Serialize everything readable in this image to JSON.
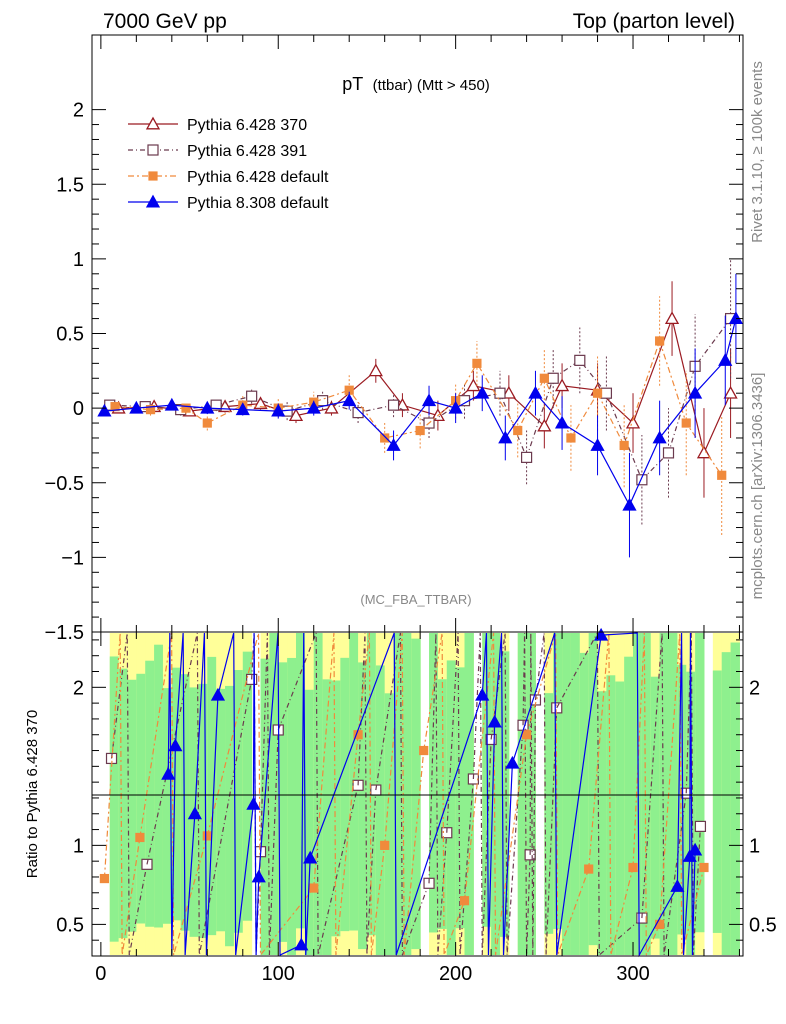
{
  "header": {
    "left": "7000 GeV pp",
    "right": "Top (parton level)"
  },
  "side_labels": {
    "rivet": "Rivet 3.1.10, ≥ 100k events",
    "mcplots": "mcplots.cern.ch [arXiv:1306.3436]"
  },
  "chart_data": [
    {
      "type": "line",
      "title_main": "pT",
      "title_sub": "(ttbar) (Mtt > 450)",
      "watermark": "(MC_FBA_TTBAR)",
      "xlim": [
        -5,
        362
      ],
      "ylim": [
        -1.5,
        2.5
      ],
      "y_ticks": [
        -1.5,
        -1,
        -0.5,
        0,
        0.5,
        1,
        1.5,
        2
      ],
      "y_tick_labels": [
        "−1.5",
        "−1",
        "−0.5",
        "0",
        "0.5",
        "1",
        "1.5",
        "2"
      ],
      "x_ticks": [
        0,
        100,
        200,
        300
      ],
      "x_tick_labels": [
        "0",
        "100",
        "200",
        "300"
      ],
      "legend_position": "top-left",
      "series": [
        {
          "name": "Pythia 6.428 370",
          "color": "#9b1b22",
          "marker": "open-triangle",
          "x": [
            10,
            30,
            50,
            70,
            90,
            110,
            130,
            155,
            170,
            190,
            210,
            230,
            250,
            260,
            280,
            300,
            322,
            340,
            355
          ],
          "y": [
            0.0,
            0.01,
            -0.02,
            0.01,
            0.03,
            -0.05,
            0.0,
            0.25,
            0.02,
            -0.05,
            0.15,
            0.1,
            -0.12,
            0.15,
            0.12,
            -0.1,
            0.6,
            -0.3,
            0.1
          ],
          "err": [
            0.02,
            0.03,
            0.03,
            0.04,
            0.04,
            0.05,
            0.05,
            0.08,
            0.08,
            0.1,
            0.1,
            0.12,
            0.15,
            0.15,
            0.18,
            0.2,
            0.25,
            0.3,
            0.3
          ]
        },
        {
          "name": "Pythia 6.428 391",
          "color": "#6b3a4e",
          "marker": "open-square",
          "x": [
            5,
            25,
            45,
            65,
            85,
            105,
            125,
            145,
            165,
            185,
            205,
            225,
            240,
            255,
            270,
            285,
            305,
            320,
            335,
            355
          ],
          "y": [
            0.02,
            0.01,
            -0.01,
            0.02,
            0.08,
            -0.02,
            0.05,
            -0.03,
            0.02,
            -0.1,
            0.05,
            0.1,
            -0.33,
            0.2,
            0.32,
            0.1,
            -0.48,
            -0.3,
            0.28,
            0.6
          ],
          "err": [
            0.03,
            0.03,
            0.04,
            0.04,
            0.05,
            0.06,
            0.06,
            0.07,
            0.08,
            0.1,
            0.12,
            0.15,
            0.18,
            0.2,
            0.22,
            0.25,
            0.3,
            0.3,
            0.35,
            0.4
          ]
        },
        {
          "name": "Pythia 6.428 default",
          "color": "#f08a3c",
          "marker": "filled-square",
          "x": [
            8,
            28,
            48,
            60,
            80,
            100,
            120,
            140,
            160,
            180,
            200,
            212,
            235,
            250,
            265,
            280,
            295,
            315,
            330,
            350
          ],
          "y": [
            0.01,
            -0.01,
            0.0,
            -0.1,
            0.02,
            0.0,
            0.04,
            0.12,
            -0.2,
            -0.15,
            0.05,
            0.3,
            -0.15,
            0.2,
            -0.2,
            0.1,
            -0.25,
            0.45,
            -0.1,
            -0.45
          ],
          "err": [
            0.03,
            0.04,
            0.04,
            0.05,
            0.06,
            0.06,
            0.07,
            0.1,
            0.1,
            0.12,
            0.12,
            0.15,
            0.18,
            0.2,
            0.22,
            0.25,
            0.28,
            0.3,
            0.35,
            0.4
          ]
        },
        {
          "name": "Pythia 8.308 default",
          "color": "#0000ee",
          "marker": "filled-triangle",
          "x": [
            2,
            20,
            40,
            60,
            80,
            100,
            120,
            140,
            165,
            185,
            200,
            215,
            228,
            245,
            260,
            280,
            298,
            315,
            335,
            352,
            358
          ],
          "y": [
            -0.02,
            0.0,
            0.02,
            0.0,
            -0.01,
            -0.02,
            0.0,
            0.05,
            -0.25,
            0.05,
            0.0,
            0.1,
            -0.2,
            0.1,
            -0.1,
            -0.25,
            -0.65,
            -0.2,
            0.1,
            0.32,
            0.6
          ],
          "err": [
            0.02,
            0.03,
            0.03,
            0.04,
            0.04,
            0.05,
            0.05,
            0.06,
            0.1,
            0.1,
            0.1,
            0.12,
            0.15,
            0.15,
            0.18,
            0.2,
            0.35,
            0.25,
            0.3,
            0.3,
            0.3
          ]
        }
      ]
    },
    {
      "type": "line",
      "ylabel": "Ratio to Pythia 6.428 370",
      "xlim": [
        -5,
        362
      ],
      "ylim": [
        0.3,
        2.35
      ],
      "y_ticks": [
        0.5,
        1,
        2
      ],
      "y_tick_labels": [
        "0.5",
        "1",
        "2"
      ],
      "x_ticks": [
        0,
        100,
        200,
        300
      ],
      "x_tick_labels": [
        "0",
        "100",
        "200",
        "300"
      ],
      "reference_line": 1,
      "series": [
        {
          "name": "Pythia 6.428 391",
          "color": "#6b3a4e",
          "marker": "open-square",
          "x": [
            6,
            26,
            85,
            90,
            100,
            145,
            155,
            185,
            195,
            210,
            220,
            238,
            242,
            245,
            257,
            305,
            330,
            338
          ],
          "y": [
            1.55,
            0.88,
            2.05,
            0.96,
            1.73,
            1.38,
            1.35,
            0.76,
            1.08,
            1.42,
            1.67,
            1.76,
            0.94,
            1.92,
            1.87,
            0.54,
            1.33,
            1.12
          ]
        },
        {
          "name": "Pythia 6.428 default",
          "color": "#f08a3c",
          "marker": "filled-square",
          "x": [
            2,
            22,
            60,
            120,
            145,
            160,
            182,
            205,
            240,
            275,
            300,
            315,
            340
          ],
          "y": [
            0.79,
            1.05,
            1.06,
            0.73,
            1.7,
            1.0,
            1.6,
            0.65,
            1.7,
            0.85,
            0.86,
            0.5,
            0.86
          ]
        },
        {
          "name": "Pythia 8.308 default",
          "color": "#0000ee",
          "marker": "filled-triangle",
          "x": [
            38,
            42,
            53,
            66,
            86,
            89,
            113,
            118,
            215,
            222,
            232,
            282,
            325,
            332,
            335
          ],
          "y": [
            1.45,
            1.63,
            1.2,
            1.95,
            1.26,
            0.8,
            0.37,
            0.92,
            1.95,
            1.78,
            1.52,
            2.33,
            0.74,
            0.93,
            0.97
          ]
        }
      ]
    }
  ]
}
